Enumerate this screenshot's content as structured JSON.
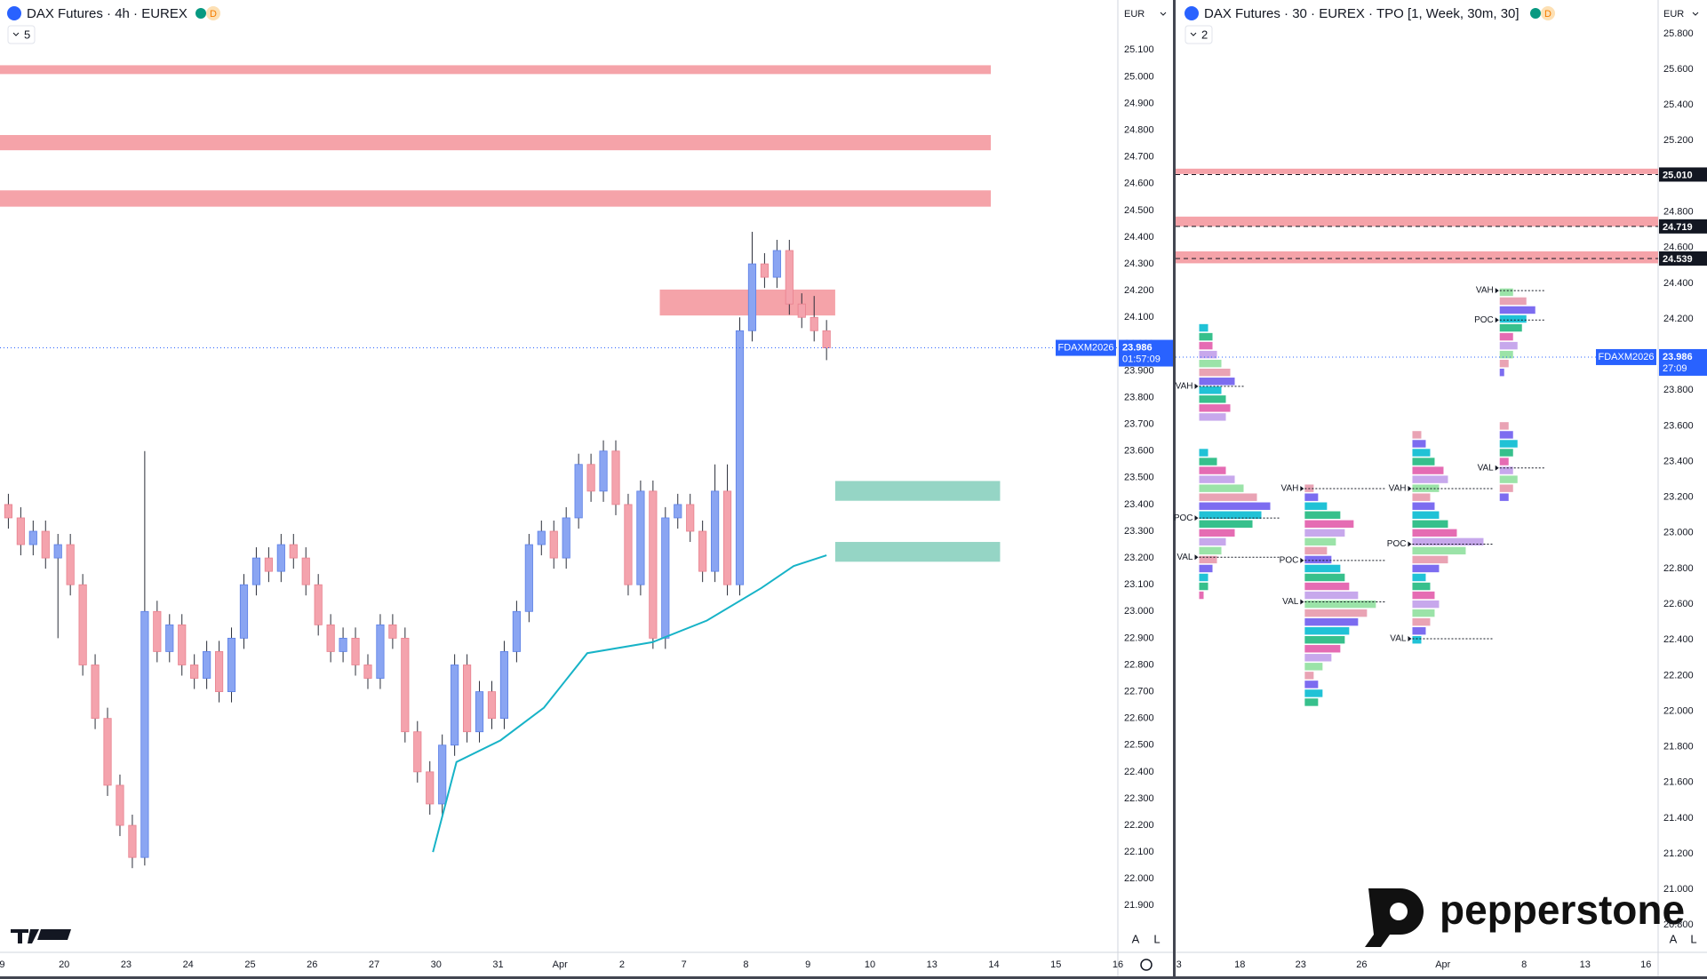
{
  "chart_data": [
    {
      "type": "candlestick",
      "title": "DAX Futures · 4h · EUREX",
      "x": [
        0.1,
        0.3,
        0.5,
        0.7,
        0.9,
        1.1,
        1.3,
        1.5,
        1.7,
        1.9,
        2.1,
        2.3,
        2.5,
        2.7,
        2.9,
        3.1,
        3.3,
        3.5,
        3.7,
        3.9,
        4.1,
        4.3,
        4.5,
        4.7,
        4.9,
        5.1,
        5.3,
        5.5,
        5.7,
        5.9,
        6.1,
        6.3,
        6.5,
        6.7,
        6.9,
        7.1,
        7.3,
        7.5,
        7.7,
        7.9,
        8.1,
        8.3,
        8.5,
        8.7,
        8.9,
        9.1,
        9.3,
        9.5,
        9.7,
        9.9,
        10.1,
        10.3,
        10.5,
        10.7,
        10.9,
        11.1,
        11.3,
        11.5,
        11.7,
        11.9,
        12.1,
        12.3,
        12.5,
        12.7,
        12.9,
        13.1,
        13.3
      ],
      "open": [
        23400,
        23350,
        23250,
        23300,
        23200,
        23250,
        23100,
        22800,
        22600,
        22350,
        22200,
        22080,
        23000,
        22850,
        22950,
        22800,
        22750,
        22850,
        22700,
        22900,
        23100,
        23200,
        23150,
        23250,
        23200,
        23100,
        22950,
        22850,
        22900,
        22800,
        22750,
        22950,
        22900,
        22550,
        22400,
        22280,
        22500,
        22800,
        22550,
        22700,
        22600,
        22850,
        23000,
        23250,
        23300,
        23200,
        23350,
        23550,
        23450,
        23600,
        23400,
        23100,
        23450,
        22900,
        23350,
        23400,
        23300,
        23150,
        23450,
        23100,
        24050,
        24300,
        24250,
        24350,
        24150,
        24100,
        24050
      ],
      "high": [
        23440,
        23390,
        23340,
        23340,
        23290,
        23290,
        23140,
        22840,
        22640,
        22390,
        22240,
        23600,
        23040,
        22990,
        22990,
        22840,
        22890,
        22890,
        22940,
        23140,
        23240,
        23240,
        23290,
        23290,
        23240,
        23140,
        22990,
        22940,
        22940,
        22840,
        22990,
        22990,
        22940,
        22590,
        22440,
        22540,
        22840,
        22840,
        22740,
        22740,
        22890,
        23040,
        23290,
        23340,
        23340,
        23390,
        23590,
        23590,
        23640,
        23640,
        23440,
        23490,
        23490,
        23390,
        23440,
        23440,
        23340,
        23550,
        23550,
        24100,
        24420,
        24340,
        24390,
        24390,
        24190,
        24180,
        24090
      ],
      "low": [
        23310,
        23210,
        23210,
        23160,
        22900,
        23060,
        22760,
        22560,
        22310,
        22160,
        22040,
        22050,
        22810,
        22810,
        22760,
        22710,
        22710,
        22660,
        22660,
        22860,
        23060,
        23110,
        23110,
        23160,
        23060,
        22910,
        22810,
        22810,
        22760,
        22710,
        22710,
        22860,
        22510,
        22360,
        22240,
        22240,
        22460,
        22510,
        22510,
        22560,
        22560,
        22810,
        22960,
        23210,
        23160,
        23160,
        23310,
        23410,
        23410,
        23360,
        23060,
        23060,
        22860,
        22860,
        23310,
        23260,
        23110,
        23110,
        23060,
        23060,
        24010,
        24210,
        24210,
        24110,
        24060,
        24010,
        23940
      ],
      "close": [
        23350,
        23250,
        23300,
        23200,
        23250,
        23100,
        22800,
        22600,
        22350,
        22200,
        22080,
        23000,
        22850,
        22950,
        22800,
        22750,
        22850,
        22700,
        22900,
        23100,
        23200,
        23150,
        23250,
        23200,
        23100,
        22950,
        22850,
        22900,
        22800,
        22750,
        22950,
        22900,
        22550,
        22400,
        22280,
        22500,
        22800,
        22550,
        22700,
        22600,
        22850,
        23000,
        23250,
        23300,
        23200,
        23350,
        23550,
        23450,
        23600,
        23400,
        23100,
        23450,
        22900,
        23350,
        23400,
        23300,
        23150,
        23450,
        23100,
        24050,
        24300,
        24250,
        24350,
        24150,
        24100,
        24050,
        23986
      ],
      "up_color": "#8aa5f2",
      "down_color": "#f4a3ad",
      "wick_color": "#2a2e39",
      "xlim": [
        -0.035,
        18.0
      ],
      "xticks": [
        {
          "value": 0,
          "label": "9"
        },
        {
          "value": 1,
          "label": "20"
        },
        {
          "value": 2,
          "label": "23"
        },
        {
          "value": 3,
          "label": "24"
        },
        {
          "value": 4,
          "label": "25"
        },
        {
          "value": 5,
          "label": "26"
        },
        {
          "value": 6,
          "label": "27"
        },
        {
          "value": 7,
          "label": "30"
        },
        {
          "value": 8,
          "label": "31"
        },
        {
          "value": 9,
          "label": "Apr"
        },
        {
          "value": 10,
          "label": "2"
        },
        {
          "value": 11,
          "label": "7"
        },
        {
          "value": 12,
          "label": "8"
        },
        {
          "value": 13,
          "label": "9"
        },
        {
          "value": 14,
          "label": "10"
        },
        {
          "value": 15,
          "label": "13"
        },
        {
          "value": 16,
          "label": "14"
        },
        {
          "value": 17,
          "label": "15"
        },
        {
          "value": 18,
          "label": "16"
        }
      ],
      "ylim": [
        21725,
        25287
      ],
      "yticks": [
        {
          "value": 21900,
          "label": "21.900"
        },
        {
          "value": 22000,
          "label": "22.000"
        },
        {
          "value": 22100,
          "label": "22.100"
        },
        {
          "value": 22200,
          "label": "22.200"
        },
        {
          "value": 22300,
          "label": "22.300"
        },
        {
          "value": 22400,
          "label": "22.400"
        },
        {
          "value": 22500,
          "label": "22.500"
        },
        {
          "value": 22600,
          "label": "22.600"
        },
        {
          "value": 22700,
          "label": "22.700"
        },
        {
          "value": 22800,
          "label": "22.800"
        },
        {
          "value": 22900,
          "label": "22.900"
        },
        {
          "value": 23000,
          "label": "23.000"
        },
        {
          "value": 23100,
          "label": "23.100"
        },
        {
          "value": 23200,
          "label": "23.200"
        },
        {
          "value": 23300,
          "label": "23.300"
        },
        {
          "value": 23400,
          "label": "23.400"
        },
        {
          "value": 23500,
          "label": "23.500"
        },
        {
          "value": 23600,
          "label": "23.600"
        },
        {
          "value": 23700,
          "label": "23.700"
        },
        {
          "value": 23800,
          "label": "23.800"
        },
        {
          "value": 23900,
          "label": "23.900"
        },
        {
          "value": 24000,
          "label": "24.000"
        },
        {
          "value": 24100,
          "label": "24.100"
        },
        {
          "value": 24200,
          "label": "24.200"
        },
        {
          "value": 24300,
          "label": "24.300"
        },
        {
          "value": 24400,
          "label": "24.400"
        },
        {
          "value": 24500,
          "label": "24.500"
        },
        {
          "value": 24600,
          "label": "24.600"
        },
        {
          "value": 24700,
          "label": "24.700"
        },
        {
          "value": 24800,
          "label": "24.800"
        },
        {
          "value": 24900,
          "label": "24.900"
        },
        {
          "value": 25000,
          "label": "25.000"
        },
        {
          "value": 25100,
          "label": "25.100"
        }
      ],
      "zones": [
        {
          "low": 25010,
          "high": 25043,
          "x0": -0.035,
          "x1": 15.95,
          "color": "#f5a3a9"
        },
        {
          "low": 24725,
          "high": 24782,
          "x0": -0.035,
          "x1": 15.95,
          "color": "#f5a3a9"
        },
        {
          "low": 24514,
          "high": 24575,
          "x0": -0.035,
          "x1": 15.95,
          "color": "#f5a3a9"
        },
        {
          "low": 24107,
          "high": 24204,
          "x0": 10.61,
          "x1": 13.44,
          "color": "#f5a3a9"
        },
        {
          "low": 23414,
          "high": 23488,
          "x0": 13.44,
          "x1": 16.1,
          "color": "#95d5c5"
        },
        {
          "low": 23186,
          "high": 23260,
          "x0": 13.44,
          "x1": 16.1,
          "color": "#95d5c5"
        }
      ],
      "lines": [
        {
          "color": "#17b3c7",
          "x": [
            6.95,
            7.33,
            8.04,
            8.74,
            9.44,
            10.49,
            11.37,
            12.25,
            12.77,
            13.3
          ],
          "values": [
            22100,
            22437,
            22518,
            22640,
            22844,
            22885,
            22966,
            23088,
            23170,
            23210
          ]
        }
      ],
      "last_price": {
        "symbol": "FDAXM2026",
        "value": 23986,
        "label": "23.986",
        "countdown": "01:57:09",
        "color": "#2962ff"
      }
    },
    {
      "type": "tpo",
      "title": "DAX Futures · 30 · EUREX · TPO [1, Week, 30m, 30]",
      "xlim": [
        -0.16,
        23.6
      ],
      "xticks": [
        {
          "value": 0,
          "label": "3"
        },
        {
          "value": 3,
          "label": "18"
        },
        {
          "value": 6,
          "label": "23"
        },
        {
          "value": 9,
          "label": "26"
        },
        {
          "value": 13,
          "label": "Apr"
        },
        {
          "value": 17,
          "label": "8"
        },
        {
          "value": 20,
          "label": "13"
        },
        {
          "value": 23,
          "label": "16"
        }
      ],
      "ylim": [
        20647,
        25989
      ],
      "yticks": [
        {
          "value": 20800,
          "label": "20.800"
        },
        {
          "value": 21000,
          "label": "21.000"
        },
        {
          "value": 21200,
          "label": "21.200"
        },
        {
          "value": 21400,
          "label": "21.400"
        },
        {
          "value": 21600,
          "label": "21.600"
        },
        {
          "value": 21800,
          "label": "21.800"
        },
        {
          "value": 22000,
          "label": "22.000"
        },
        {
          "value": 22200,
          "label": "22.200"
        },
        {
          "value": 22400,
          "label": "22.400"
        },
        {
          "value": 22600,
          "label": "22.600"
        },
        {
          "value": 22800,
          "label": "22.800"
        },
        {
          "value": 23000,
          "label": "23.000"
        },
        {
          "value": 23200,
          "label": "23.200"
        },
        {
          "value": 23400,
          "label": "23.400"
        },
        {
          "value": 23600,
          "label": "23.600"
        },
        {
          "value": 23800,
          "label": "23.800"
        },
        {
          "value": 24000,
          "label": "24.000"
        },
        {
          "value": 24200,
          "label": "24.200"
        },
        {
          "value": 24400,
          "label": "24.400"
        },
        {
          "value": 24600,
          "label": "24.600"
        },
        {
          "value": 24800,
          "label": "24.800"
        },
        {
          "value": 25000,
          "label": "25.000"
        },
        {
          "value": 25200,
          "label": "25.200"
        },
        {
          "value": 25400,
          "label": "25.400"
        },
        {
          "value": 25600,
          "label": "25.600"
        },
        {
          "value": 25800,
          "label": "25.800"
        }
      ],
      "zones": [
        {
          "low": 25013,
          "high": 25043,
          "level": 25010,
          "label": "25.010",
          "color": "#f5a3a9"
        },
        {
          "low": 24719,
          "high": 24774,
          "level": 24719,
          "label": "24.719",
          "color": "#f5a3a9"
        },
        {
          "low": 24512,
          "high": 24579,
          "level": 24539,
          "label": "24.539",
          "color": "#f5a3a9"
        }
      ],
      "profiles": [
        {
          "x": 1.0,
          "low": 23650,
          "step": 50,
          "counts": [
            6,
            7,
            6,
            5,
            8,
            7,
            5,
            4,
            3,
            3,
            2
          ],
          "levels": [
            {
              "name": "VAH",
              "value": 23822
            }
          ]
        },
        {
          "x": 1.0,
          "low": 22650,
          "step": 50,
          "counts": [
            1,
            2,
            2,
            3,
            4,
            5,
            6,
            8,
            12,
            14,
            16,
            13,
            10,
            8,
            6,
            4,
            2
          ],
          "levels": [
            {
              "name": "POC",
              "value": 23083
            },
            {
              "name": "VAL",
              "value": 22863
            }
          ]
        },
        {
          "x": 6.2,
          "low": 22050,
          "step": 50,
          "counts": [
            3,
            4,
            3,
            2,
            4,
            6,
            8,
            9,
            10,
            12,
            14,
            16,
            12,
            10,
            9,
            8,
            6,
            5,
            7,
            9,
            11,
            8,
            5,
            3,
            2
          ],
          "levels": [
            {
              "name": "VAH",
              "value": 23248
            },
            {
              "name": "POC",
              "value": 22845
            },
            {
              "name": "VAL",
              "value": 22613
            }
          ]
        },
        {
          "x": 11.5,
          "low": 22400,
          "step": 50,
          "counts": [
            2,
            3,
            4,
            5,
            6,
            5,
            4,
            3,
            6,
            8,
            12,
            16,
            10,
            8,
            6,
            5,
            4,
            6,
            8,
            7,
            5,
            4,
            3,
            2
          ],
          "levels": [
            {
              "name": "VAH",
              "value": 23248
            },
            {
              "name": "POC",
              "value": 22937
            },
            {
              "name": "VAL",
              "value": 22406
            }
          ]
        },
        {
          "x": 15.8,
          "low": 23200,
          "step": 50,
          "counts": [
            2,
            3,
            4,
            3,
            2,
            3,
            4,
            3,
            2,
            0,
            0,
            0,
            0,
            0,
            1,
            2,
            3,
            4,
            3,
            5,
            6,
            8,
            6,
            3
          ],
          "levels": [
            {
              "name": "VAH",
              "value": 24359
            },
            {
              "name": "POC",
              "value": 24194
            },
            {
              "name": "VAL",
              "value": 23364
            }
          ]
        }
      ],
      "last_price": {
        "symbol": "FDAXM2026",
        "value": 23986,
        "label": "23.986",
        "countdown": "27:09",
        "color": "#2962ff"
      }
    }
  ],
  "ui": {
    "left": {
      "badge": "D",
      "indicator_count": "5",
      "currency": "EUR",
      "buttons": [
        "A",
        "L"
      ]
    },
    "right": {
      "badge": "D",
      "indicator_count": "2",
      "currency": "EUR",
      "buttons": [
        "A",
        "L"
      ]
    },
    "watermark": "pepperstone"
  }
}
